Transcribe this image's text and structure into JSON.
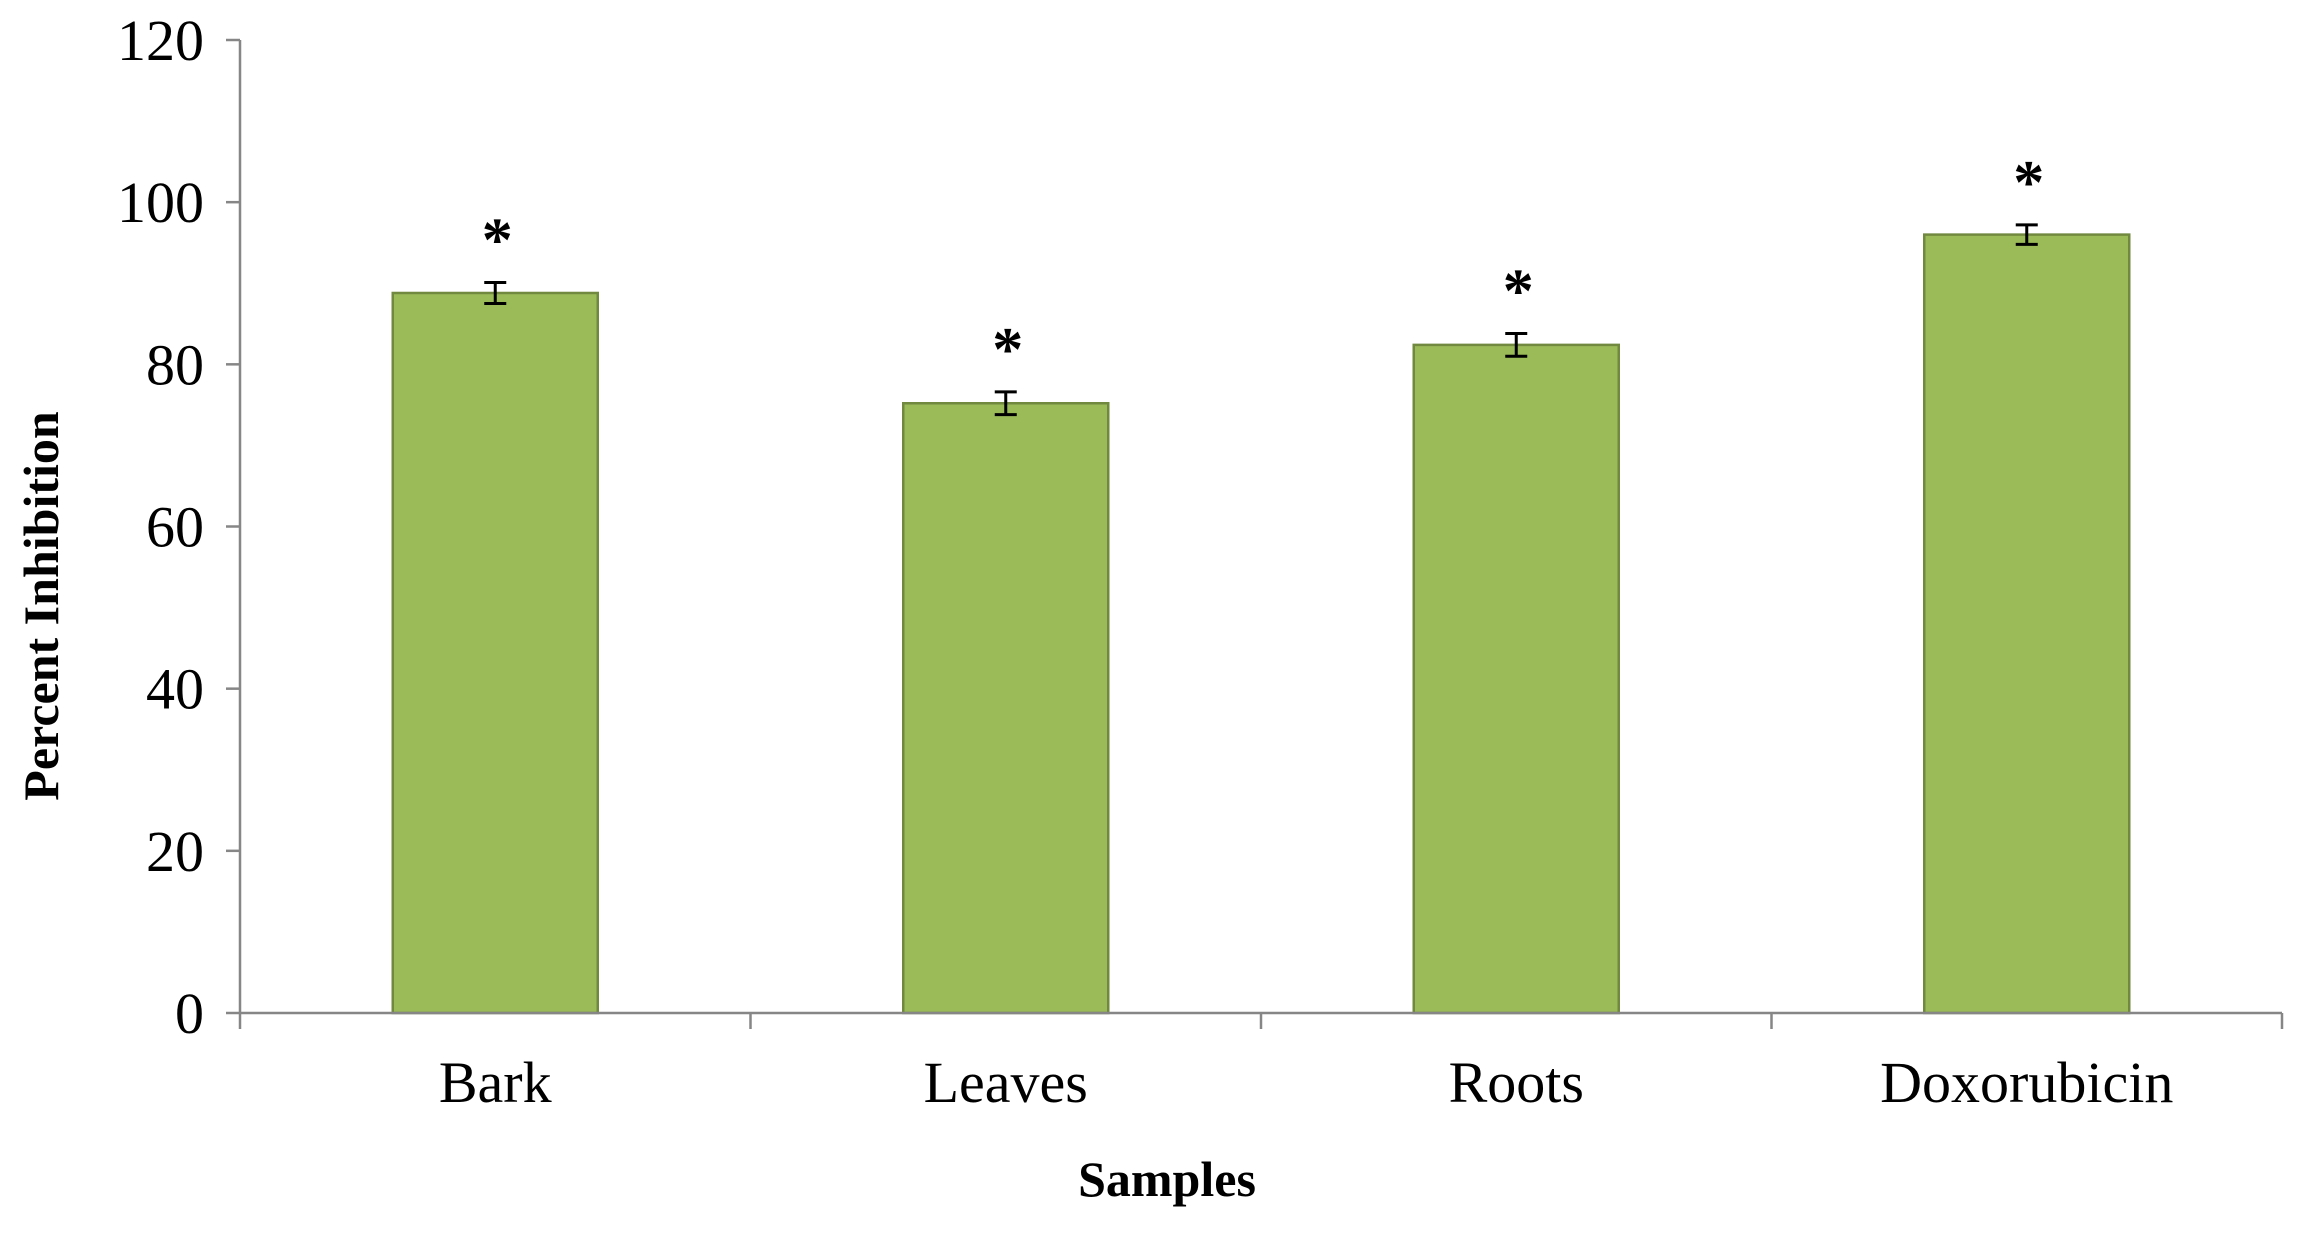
{
  "chart_data": {
    "type": "bar",
    "categories": [
      "Bark",
      "Leaves",
      "Roots",
      "Doxorubicin"
    ],
    "values": [
      88.8,
      75.2,
      82.4,
      96.0
    ],
    "errors": [
      1.3,
      1.4,
      1.4,
      1.2
    ],
    "significance": [
      "*",
      "*",
      "*",
      "*"
    ],
    "xlabel": "Samples",
    "ylabel": "Percent Inhibition",
    "ylim": [
      0,
      120
    ],
    "yticks": [
      0,
      20,
      40,
      60,
      80,
      100,
      120
    ],
    "grid": false,
    "legend": "none",
    "colors": {
      "bar_fill": "#9bbb59",
      "bar_stroke": "#71893f",
      "axis": "#868686"
    }
  }
}
